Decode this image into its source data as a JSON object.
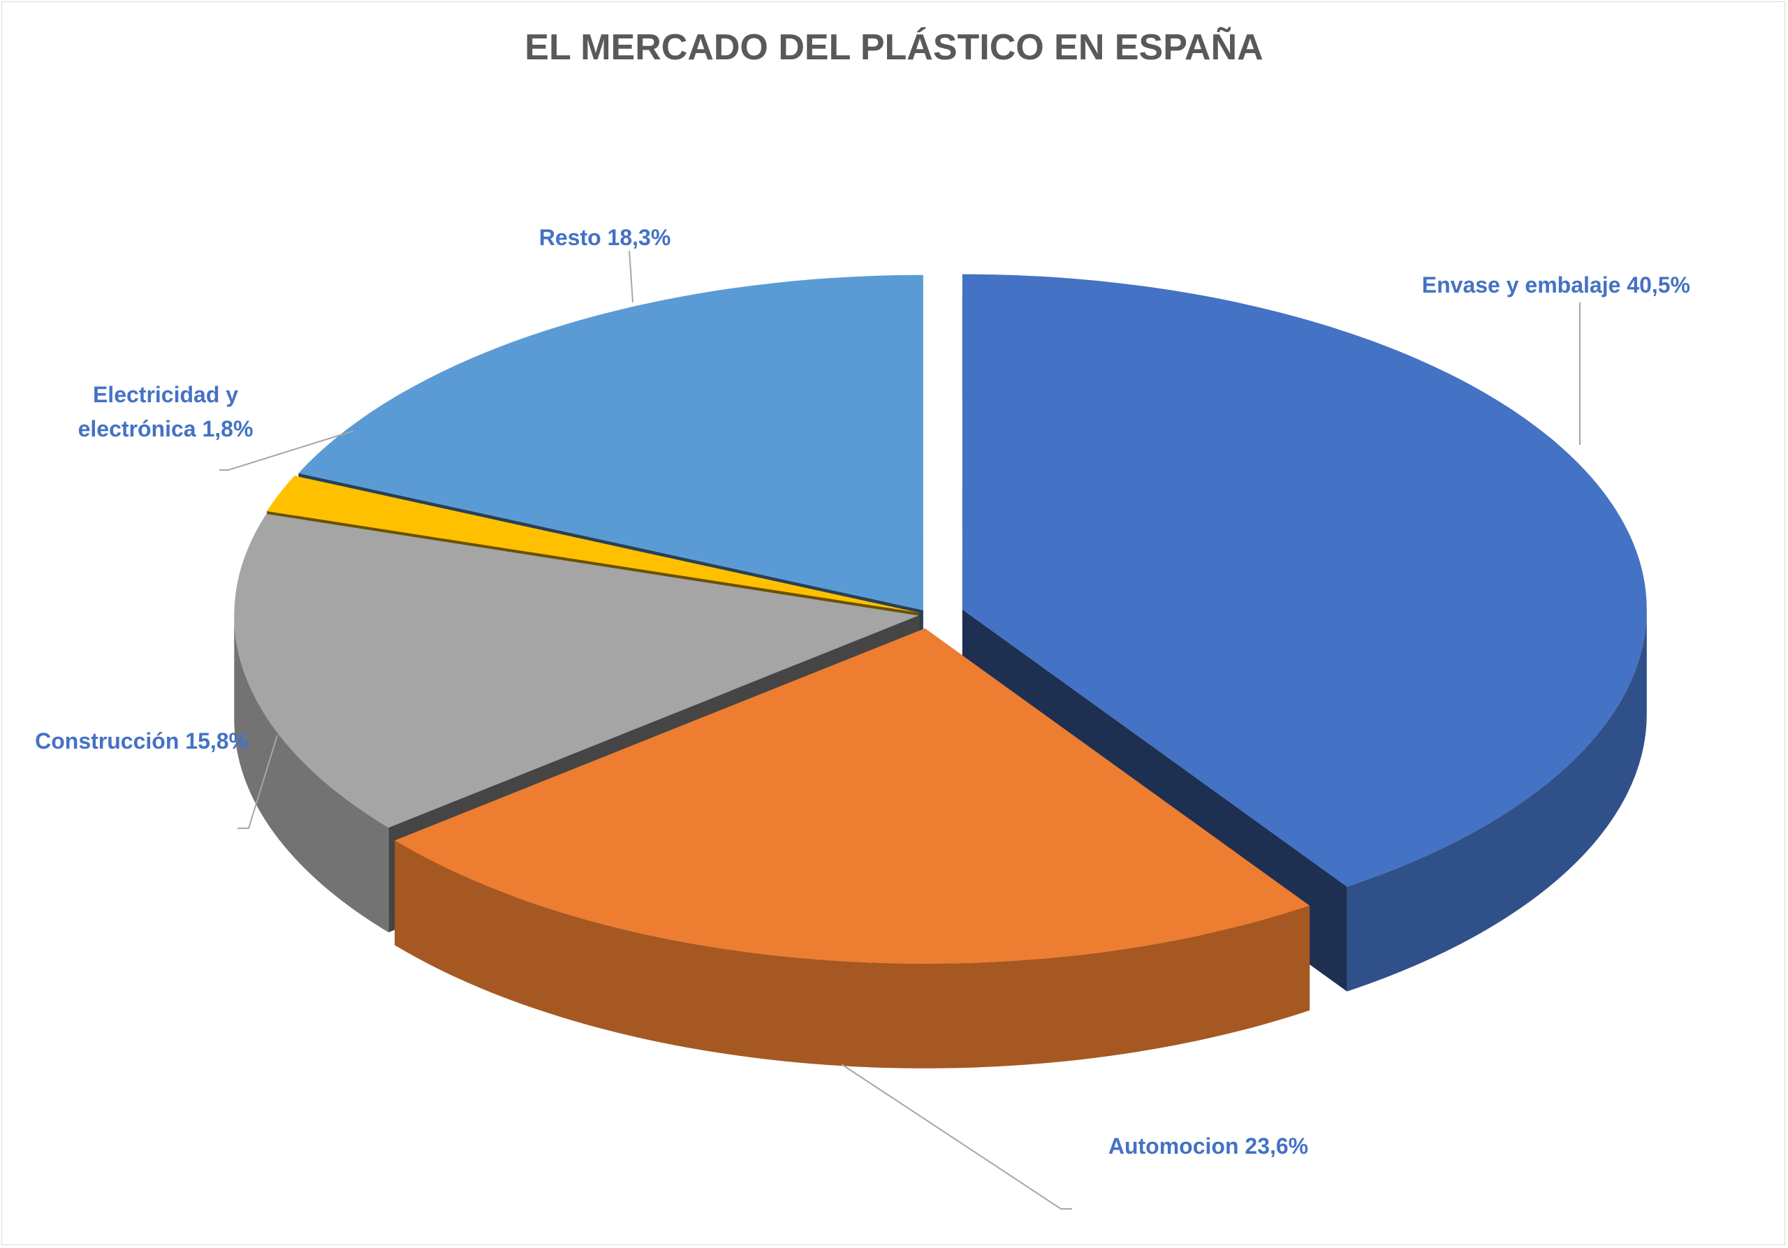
{
  "chart_data": {
    "type": "pie3d",
    "title": "EL MERCADO DEL PLÁSTICO EN ESPAÑA",
    "categories": [
      "Envase y embalaje",
      "Automocion",
      "Construcción",
      "Electricidad y electrónica",
      "Resto"
    ],
    "values": [
      40.5,
      23.6,
      15.8,
      1.8,
      18.3
    ],
    "value_labels": [
      "40,5%",
      "23,6%",
      "15,8%",
      "1,8%",
      "18,3%"
    ],
    "colors": [
      "#4472c4",
      "#ed7d31",
      "#a5a5a5",
      "#ffc000",
      "#5b9bd5"
    ]
  }
}
